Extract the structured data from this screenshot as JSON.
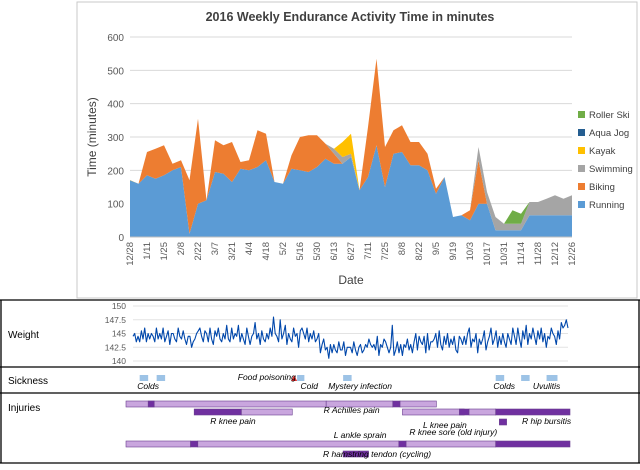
{
  "chart_data": [
    {
      "type": "area",
      "title": "2016 Weekly Endurance Activity Time in minutes",
      "xlabel": "Date",
      "ylabel": "Time (minutes)",
      "ylim": [
        0,
        600
      ],
      "yticks": [
        "0",
        "100",
        "200",
        "300",
        "400",
        "500",
        "600"
      ],
      "stacked": true,
      "legend_position": "right",
      "x_tick_labels": [
        "12/28",
        "1/11",
        "1/25",
        "2/8",
        "2/22",
        "3/7",
        "3/21",
        "4/4",
        "4/18",
        "5/2",
        "5/16",
        "5/30",
        "6/13",
        "6/27",
        "7/11",
        "7/25",
        "8/8",
        "8/22",
        "9/5",
        "9/19",
        "10/3",
        "10/17",
        "10/31",
        "11/14",
        "11/28",
        "12/12",
        "12/26"
      ],
      "x": [
        "12/28",
        "1/4",
        "1/11",
        "1/18",
        "1/25",
        "2/1",
        "2/8",
        "2/15",
        "2/22",
        "2/29",
        "3/7",
        "3/14",
        "3/21",
        "3/28",
        "4/4",
        "4/11",
        "4/18",
        "4/25",
        "5/2",
        "5/9",
        "5/16",
        "5/23",
        "5/30",
        "6/6",
        "6/13",
        "6/20",
        "6/27",
        "7/4",
        "7/11",
        "7/18",
        "7/25",
        "8/1",
        "8/8",
        "8/15",
        "8/22",
        "8/29",
        "9/5",
        "9/12",
        "9/19",
        "9/26",
        "10/3",
        "10/10",
        "10/17",
        "10/24",
        "10/31",
        "11/7",
        "11/14",
        "11/21",
        "11/28",
        "12/5",
        "12/12",
        "12/19",
        "12/26"
      ],
      "series": [
        {
          "name": "Running",
          "color": "#5b9bd5",
          "values": [
            170,
            160,
            185,
            175,
            185,
            200,
            210,
            10,
            100,
            110,
            195,
            190,
            165,
            205,
            200,
            210,
            230,
            165,
            160,
            205,
            200,
            195,
            210,
            235,
            220,
            220,
            240,
            140,
            180,
            275,
            150,
            250,
            255,
            215,
            215,
            200,
            130,
            180,
            60,
            65,
            50,
            100,
            100,
            20,
            20,
            20,
            20,
            65,
            65,
            65,
            65,
            65,
            65
          ]
        },
        {
          "name": "Biking",
          "color": "#ed7d31",
          "values": [
            0,
            0,
            70,
            90,
            90,
            20,
            20,
            160,
            255,
            0,
            95,
            85,
            120,
            20,
            30,
            110,
            80,
            0,
            0,
            40,
            100,
            110,
            95,
            45,
            30,
            0,
            0,
            0,
            150,
            260,
            120,
            70,
            80,
            70,
            70,
            50,
            15,
            0,
            0,
            0,
            30,
            130,
            0,
            0,
            0,
            0,
            0,
            0,
            0,
            0,
            0,
            0,
            0
          ]
        },
        {
          "name": "Swimming",
          "color": "#a5a5a5",
          "values": [
            0,
            0,
            0,
            0,
            0,
            0,
            0,
            0,
            0,
            0,
            0,
            0,
            0,
            0,
            0,
            0,
            0,
            0,
            0,
            0,
            0,
            0,
            0,
            0,
            15,
            20,
            10,
            0,
            0,
            0,
            0,
            0,
            0,
            0,
            0,
            0,
            0,
            0,
            0,
            0,
            0,
            40,
            35,
            40,
            20,
            20,
            20,
            40,
            40,
            50,
            60,
            50,
            60
          ]
        },
        {
          "name": "Kayak",
          "color": "#ffc000",
          "values": [
            0,
            0,
            0,
            0,
            0,
            0,
            0,
            0,
            0,
            0,
            0,
            0,
            0,
            0,
            0,
            0,
            0,
            0,
            0,
            0,
            0,
            0,
            0,
            0,
            0,
            45,
            60,
            0,
            0,
            0,
            0,
            0,
            0,
            0,
            0,
            0,
            0,
            0,
            0,
            0,
            0,
            0,
            0,
            0,
            0,
            0,
            0,
            0,
            0,
            0,
            0,
            0,
            0
          ]
        },
        {
          "name": "Aqua Jog",
          "color": "#255e91",
          "values": [
            0,
            0,
            0,
            0,
            0,
            0,
            0,
            0,
            0,
            0,
            0,
            0,
            0,
            0,
            0,
            0,
            0,
            0,
            0,
            0,
            0,
            0,
            0,
            0,
            0,
            0,
            0,
            0,
            0,
            0,
            0,
            0,
            0,
            0,
            0,
            0,
            0,
            0,
            0,
            0,
            0,
            0,
            0,
            0,
            0,
            0,
            0,
            0,
            0,
            0,
            0,
            0,
            0
          ]
        },
        {
          "name": "Roller Ski",
          "color": "#70ad47",
          "values": [
            0,
            0,
            0,
            0,
            0,
            0,
            0,
            0,
            0,
            0,
            0,
            0,
            0,
            0,
            0,
            0,
            0,
            0,
            0,
            0,
            0,
            0,
            0,
            0,
            0,
            0,
            0,
            0,
            0,
            0,
            0,
            0,
            0,
            0,
            0,
            0,
            0,
            0,
            0,
            0,
            0,
            0,
            0,
            0,
            0,
            40,
            30,
            0,
            0,
            0,
            0,
            0,
            0
          ]
        }
      ]
    },
    {
      "type": "line",
      "title": "Weight",
      "ylim": [
        140,
        150
      ],
      "yticks": [
        "140",
        "142.5",
        "145",
        "147.5",
        "150"
      ],
      "color": "#0047ab",
      "values": [
        144.5,
        145,
        143.5,
        144.5,
        143.5,
        145.5,
        144,
        146,
        143.5,
        145,
        144,
        145,
        144.5,
        143.5,
        146,
        144,
        145,
        144,
        146,
        143.5,
        144.5,
        145.5,
        143,
        145,
        145,
        144,
        143.5,
        146,
        144.5,
        144,
        145.5,
        144,
        143,
        144.5,
        144.5,
        142.5,
        143.5,
        144,
        145,
        145.5,
        146,
        144.5,
        143.5,
        145.5,
        145,
        143.5,
        146,
        144,
        143,
        145.5,
        144.5,
        146,
        144,
        143.5,
        145,
        144,
        146.5,
        144,
        143.5,
        146,
        144,
        145,
        144.5,
        146.5,
        143.5,
        145,
        144,
        143,
        146,
        144.5,
        143,
        144.5,
        145,
        147,
        144,
        145,
        143,
        145.5,
        144,
        143.5,
        145,
        144,
        146,
        144.5,
        148,
        145,
        144.5,
        143.5,
        147.5,
        144,
        145,
        146.5,
        143,
        145,
        144,
        143.5,
        146,
        144.5,
        145,
        142.5,
        145.5,
        146,
        145,
        144,
        146,
        143.5,
        145,
        144,
        145.5,
        143.5,
        144,
        145,
        141.5,
        143,
        144,
        142,
        142.5,
        140.5,
        143,
        141.5,
        143,
        142,
        141.5,
        143.5,
        142,
        142,
        143.5,
        141,
        142.5,
        142.5,
        142.5,
        141.5,
        143.5,
        142,
        141,
        142.5,
        143,
        141.5,
        142,
        143,
        142.5,
        144,
        143,
        142.5,
        143,
        142,
        144.5,
        141,
        143,
        142.5,
        144,
        143.5,
        142.5,
        141.5,
        142.5,
        146.5,
        141,
        142,
        143.5,
        141.5,
        143,
        141,
        143,
        142.5,
        144,
        142,
        143,
        141.5,
        143.5,
        145,
        142,
        144.5,
        143.5,
        143,
        144.5,
        141.5,
        145,
        142,
        143.5,
        143.5,
        144,
        145,
        142.5,
        145.5,
        143,
        142,
        144.5,
        143,
        145,
        142.5,
        144,
        143,
        144.5,
        142,
        141.5,
        144.5,
        144,
        143,
        144.5,
        143,
        145,
        146,
        142.5,
        144,
        143.5,
        145,
        141.5,
        144,
        143,
        144,
        145.5,
        142,
        143.5,
        144.5,
        146,
        143,
        144,
        145.5,
        142.5,
        144.5,
        143,
        145,
        143.5,
        142.5,
        145,
        144,
        143,
        146,
        144.5,
        143,
        146,
        144,
        142.5,
        145.5,
        144,
        146.5,
        143,
        145,
        144,
        146,
        144.5,
        143,
        145.5,
        144,
        146,
        143.5,
        145,
        142.5,
        144.5,
        144,
        146,
        145,
        144.5,
        143,
        145.5,
        144,
        147,
        146,
        146.5,
        147.5,
        146
      ]
    }
  ],
  "panels": {
    "weight_label": "Weight",
    "sickness_label": "Sickness",
    "injuries_label": "Injuries"
  },
  "sickness": {
    "colors": {
      "illness": "#9dc3e6",
      "poisoning": "#e03030"
    },
    "events": [
      {
        "kind": "illness",
        "start": "1/4",
        "end": "1/11"
      },
      {
        "kind": "illness",
        "start": "1/18",
        "end": "1/25"
      },
      {
        "kind": "poisoning",
        "start": "5/9",
        "end": "5/12"
      },
      {
        "kind": "illness",
        "start": "5/13",
        "end": "5/19"
      },
      {
        "kind": "illness",
        "start": "6/20",
        "end": "6/27"
      },
      {
        "kind": "illness",
        "start": "10/24",
        "end": "10/31"
      },
      {
        "kind": "illness",
        "start": "11/14",
        "end": "11/21"
      },
      {
        "kind": "illness",
        "start": "12/5",
        "end": "12/14"
      }
    ],
    "labels": [
      {
        "text": "Colds",
        "at": "1/11"
      },
      {
        "text": "Food poisoning",
        "at": "4/18"
      },
      {
        "text": "Cold",
        "at": "5/23"
      },
      {
        "text": "Mystery infection",
        "at": "7/4"
      },
      {
        "text": "Colds",
        "at": "10/31"
      },
      {
        "text": "Uvulitis",
        "at": "12/5"
      }
    ]
  },
  "injuries": {
    "colors": {
      "mild": "#c9a6de",
      "severe": "#7030a0",
      "border": "#6a3f8f"
    },
    "bars": [
      {
        "row": 0,
        "kind": "mild",
        "start": "12/26",
        "end": "6/6"
      },
      {
        "row": 0,
        "kind": "severe",
        "start": "1/11",
        "end": "1/16"
      },
      {
        "row": 0,
        "kind": "mild",
        "start": "6/6",
        "end": "7/31"
      },
      {
        "row": 0,
        "kind": "severe",
        "start": "7/31",
        "end": "8/6"
      },
      {
        "row": 0,
        "kind": "mild",
        "start": "8/6",
        "end": "9/5"
      },
      {
        "row": 1,
        "kind": "severe",
        "start": "2/18",
        "end": "3/28"
      },
      {
        "row": 1,
        "kind": "mild",
        "start": "3/28",
        "end": "5/9"
      },
      {
        "row": 1,
        "kind": "mild",
        "start": "8/8",
        "end": "9/28"
      },
      {
        "row": 1,
        "kind": "severe",
        "start": "9/24",
        "end": "10/2"
      },
      {
        "row": 1,
        "kind": "mild",
        "start": "10/2",
        "end": "10/24"
      },
      {
        "row": 1,
        "kind": "severe",
        "start": "10/24",
        "end": "12/26"
      },
      {
        "row": 2,
        "kind": "severe",
        "start": "10/27",
        "end": "11/2"
      },
      {
        "row": 3,
        "kind": "severe",
        "start": "6/20",
        "end": "7/11"
      },
      {
        "row": 4,
        "kind": "mild",
        "start": "12/26",
        "end": "2/15"
      },
      {
        "row": 4,
        "kind": "severe",
        "start": "2/15",
        "end": "2/21"
      },
      {
        "row": 4,
        "kind": "mild",
        "start": "2/21",
        "end": "8/5"
      },
      {
        "row": 4,
        "kind": "severe",
        "start": "8/5",
        "end": "8/11"
      },
      {
        "row": 4,
        "kind": "mild",
        "start": "8/11",
        "end": "10/24"
      },
      {
        "row": 4,
        "kind": "severe",
        "start": "10/24",
        "end": "12/26"
      }
    ],
    "labels": [
      {
        "text": "R Achilles pain",
        "at": "6/27",
        "row": 0
      },
      {
        "text": "R knee pain",
        "at": "3/21",
        "row": 1
      },
      {
        "text": "L knee pain",
        "at": "9/12",
        "row": 1
      },
      {
        "text": "R hip bursitis",
        "at": "12/5",
        "row": 1
      },
      {
        "text": "R knee sore (old injury)",
        "at": "9/19",
        "row": 2
      },
      {
        "text": "L ankle sprain",
        "at": "7/4",
        "row": 3
      },
      {
        "text": "R hamstring tendon (cycling)",
        "at": "7/18",
        "row": 4
      }
    ]
  }
}
